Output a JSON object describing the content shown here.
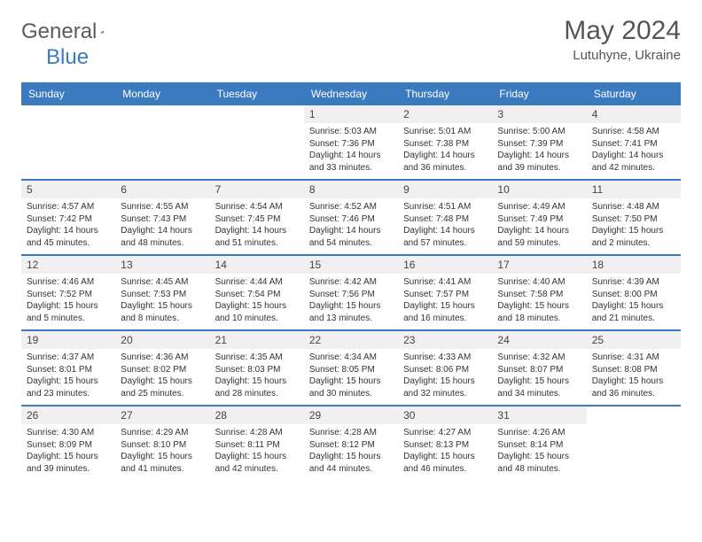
{
  "logo": {
    "part1": "General",
    "part2": "Blue"
  },
  "title": "May 2024",
  "location": "Lutuhyne, Ukraine",
  "colors": {
    "header_bar": "#3b7abf",
    "day_num_bg": "#f0f0f0",
    "text": "#333333",
    "logo_gray": "#5b5b5b",
    "logo_blue": "#3b7abf"
  },
  "weekdays": [
    "Sunday",
    "Monday",
    "Tuesday",
    "Wednesday",
    "Thursday",
    "Friday",
    "Saturday"
  ],
  "weeks": [
    [
      {
        "n": "",
        "l1": "",
        "l2": "",
        "l3": "",
        "l4": ""
      },
      {
        "n": "",
        "l1": "",
        "l2": "",
        "l3": "",
        "l4": ""
      },
      {
        "n": "",
        "l1": "",
        "l2": "",
        "l3": "",
        "l4": ""
      },
      {
        "n": "1",
        "l1": "Sunrise: 5:03 AM",
        "l2": "Sunset: 7:36 PM",
        "l3": "Daylight: 14 hours",
        "l4": "and 33 minutes."
      },
      {
        "n": "2",
        "l1": "Sunrise: 5:01 AM",
        "l2": "Sunset: 7:38 PM",
        "l3": "Daylight: 14 hours",
        "l4": "and 36 minutes."
      },
      {
        "n": "3",
        "l1": "Sunrise: 5:00 AM",
        "l2": "Sunset: 7:39 PM",
        "l3": "Daylight: 14 hours",
        "l4": "and 39 minutes."
      },
      {
        "n": "4",
        "l1": "Sunrise: 4:58 AM",
        "l2": "Sunset: 7:41 PM",
        "l3": "Daylight: 14 hours",
        "l4": "and 42 minutes."
      }
    ],
    [
      {
        "n": "5",
        "l1": "Sunrise: 4:57 AM",
        "l2": "Sunset: 7:42 PM",
        "l3": "Daylight: 14 hours",
        "l4": "and 45 minutes."
      },
      {
        "n": "6",
        "l1": "Sunrise: 4:55 AM",
        "l2": "Sunset: 7:43 PM",
        "l3": "Daylight: 14 hours",
        "l4": "and 48 minutes."
      },
      {
        "n": "7",
        "l1": "Sunrise: 4:54 AM",
        "l2": "Sunset: 7:45 PM",
        "l3": "Daylight: 14 hours",
        "l4": "and 51 minutes."
      },
      {
        "n": "8",
        "l1": "Sunrise: 4:52 AM",
        "l2": "Sunset: 7:46 PM",
        "l3": "Daylight: 14 hours",
        "l4": "and 54 minutes."
      },
      {
        "n": "9",
        "l1": "Sunrise: 4:51 AM",
        "l2": "Sunset: 7:48 PM",
        "l3": "Daylight: 14 hours",
        "l4": "and 57 minutes."
      },
      {
        "n": "10",
        "l1": "Sunrise: 4:49 AM",
        "l2": "Sunset: 7:49 PM",
        "l3": "Daylight: 14 hours",
        "l4": "and 59 minutes."
      },
      {
        "n": "11",
        "l1": "Sunrise: 4:48 AM",
        "l2": "Sunset: 7:50 PM",
        "l3": "Daylight: 15 hours",
        "l4": "and 2 minutes."
      }
    ],
    [
      {
        "n": "12",
        "l1": "Sunrise: 4:46 AM",
        "l2": "Sunset: 7:52 PM",
        "l3": "Daylight: 15 hours",
        "l4": "and 5 minutes."
      },
      {
        "n": "13",
        "l1": "Sunrise: 4:45 AM",
        "l2": "Sunset: 7:53 PM",
        "l3": "Daylight: 15 hours",
        "l4": "and 8 minutes."
      },
      {
        "n": "14",
        "l1": "Sunrise: 4:44 AM",
        "l2": "Sunset: 7:54 PM",
        "l3": "Daylight: 15 hours",
        "l4": "and 10 minutes."
      },
      {
        "n": "15",
        "l1": "Sunrise: 4:42 AM",
        "l2": "Sunset: 7:56 PM",
        "l3": "Daylight: 15 hours",
        "l4": "and 13 minutes."
      },
      {
        "n": "16",
        "l1": "Sunrise: 4:41 AM",
        "l2": "Sunset: 7:57 PM",
        "l3": "Daylight: 15 hours",
        "l4": "and 16 minutes."
      },
      {
        "n": "17",
        "l1": "Sunrise: 4:40 AM",
        "l2": "Sunset: 7:58 PM",
        "l3": "Daylight: 15 hours",
        "l4": "and 18 minutes."
      },
      {
        "n": "18",
        "l1": "Sunrise: 4:39 AM",
        "l2": "Sunset: 8:00 PM",
        "l3": "Daylight: 15 hours",
        "l4": "and 21 minutes."
      }
    ],
    [
      {
        "n": "19",
        "l1": "Sunrise: 4:37 AM",
        "l2": "Sunset: 8:01 PM",
        "l3": "Daylight: 15 hours",
        "l4": "and 23 minutes."
      },
      {
        "n": "20",
        "l1": "Sunrise: 4:36 AM",
        "l2": "Sunset: 8:02 PM",
        "l3": "Daylight: 15 hours",
        "l4": "and 25 minutes."
      },
      {
        "n": "21",
        "l1": "Sunrise: 4:35 AM",
        "l2": "Sunset: 8:03 PM",
        "l3": "Daylight: 15 hours",
        "l4": "and 28 minutes."
      },
      {
        "n": "22",
        "l1": "Sunrise: 4:34 AM",
        "l2": "Sunset: 8:05 PM",
        "l3": "Daylight: 15 hours",
        "l4": "and 30 minutes."
      },
      {
        "n": "23",
        "l1": "Sunrise: 4:33 AM",
        "l2": "Sunset: 8:06 PM",
        "l3": "Daylight: 15 hours",
        "l4": "and 32 minutes."
      },
      {
        "n": "24",
        "l1": "Sunrise: 4:32 AM",
        "l2": "Sunset: 8:07 PM",
        "l3": "Daylight: 15 hours",
        "l4": "and 34 minutes."
      },
      {
        "n": "25",
        "l1": "Sunrise: 4:31 AM",
        "l2": "Sunset: 8:08 PM",
        "l3": "Daylight: 15 hours",
        "l4": "and 36 minutes."
      }
    ],
    [
      {
        "n": "26",
        "l1": "Sunrise: 4:30 AM",
        "l2": "Sunset: 8:09 PM",
        "l3": "Daylight: 15 hours",
        "l4": "and 39 minutes."
      },
      {
        "n": "27",
        "l1": "Sunrise: 4:29 AM",
        "l2": "Sunset: 8:10 PM",
        "l3": "Daylight: 15 hours",
        "l4": "and 41 minutes."
      },
      {
        "n": "28",
        "l1": "Sunrise: 4:28 AM",
        "l2": "Sunset: 8:11 PM",
        "l3": "Daylight: 15 hours",
        "l4": "and 42 minutes."
      },
      {
        "n": "29",
        "l1": "Sunrise: 4:28 AM",
        "l2": "Sunset: 8:12 PM",
        "l3": "Daylight: 15 hours",
        "l4": "and 44 minutes."
      },
      {
        "n": "30",
        "l1": "Sunrise: 4:27 AM",
        "l2": "Sunset: 8:13 PM",
        "l3": "Daylight: 15 hours",
        "l4": "and 46 minutes."
      },
      {
        "n": "31",
        "l1": "Sunrise: 4:26 AM",
        "l2": "Sunset: 8:14 PM",
        "l3": "Daylight: 15 hours",
        "l4": "and 48 minutes."
      },
      {
        "n": "",
        "l1": "",
        "l2": "",
        "l3": "",
        "l4": ""
      }
    ]
  ]
}
